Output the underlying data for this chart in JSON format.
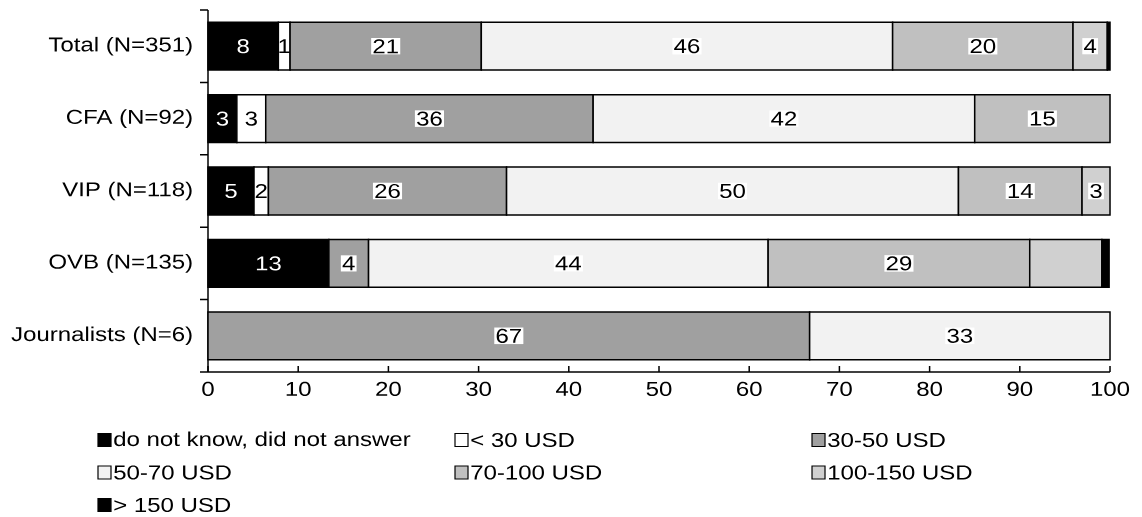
{
  "chart_data": {
    "type": "bar",
    "orientation": "horizontal",
    "stacked": true,
    "categories": [
      "Total (N=351)",
      "CFA (N=92)",
      "VIP (N=118)",
      "OVB (N=135)",
      "Journalists (N=6)"
    ],
    "series": [
      {
        "name": "do not know, did not answer",
        "color": "#000000",
        "values": [
          7.8,
          3.2,
          5.1,
          13.4,
          null
        ],
        "value_labels": [
          "8",
          "3",
          "5",
          "13",
          null
        ]
      },
      {
        "name": "< 30 USD",
        "color": "#ffffff",
        "values": [
          1.3,
          3.2,
          1.6,
          null,
          null
        ],
        "value_labels": [
          "1",
          "3",
          "2",
          null,
          null
        ]
      },
      {
        "name": "30-50 USD",
        "color": "#a0a0a0",
        "values": [
          21.2,
          36.3,
          26.4,
          4.4,
          66.7
        ],
        "value_labels": [
          "21",
          "36",
          "26",
          "4",
          "67"
        ]
      },
      {
        "name": "50-70 USD",
        "color": "#f2f2f2",
        "values": [
          45.6,
          42.3,
          50.1,
          44.3,
          33.3
        ],
        "value_labels": [
          "46",
          "42",
          "50",
          "44",
          "33"
        ]
      },
      {
        "name": "70-100 USD",
        "color": "#c0c0c0",
        "values": [
          20,
          15,
          13.7,
          29,
          null
        ],
        "value_labels": [
          "20",
          "15",
          "14",
          "29",
          null
        ]
      },
      {
        "name": "100-150 USD",
        "color": "#d0d0d0",
        "values": [
          3.8,
          null,
          3.1,
          8,
          null
        ],
        "value_labels": [
          "4",
          null,
          "3",
          null,
          null
        ]
      },
      {
        "name": "> 150 USD",
        "color": "#000000",
        "values": [
          0.3,
          null,
          null,
          0.8,
          null
        ],
        "value_labels": [
          null,
          null,
          null,
          null,
          null
        ]
      }
    ],
    "xlim": [
      0,
      100
    ],
    "xticks": [
      0,
      10,
      20,
      30,
      40,
      50,
      60,
      70,
      80,
      90,
      100
    ],
    "legend": "bottom"
  }
}
